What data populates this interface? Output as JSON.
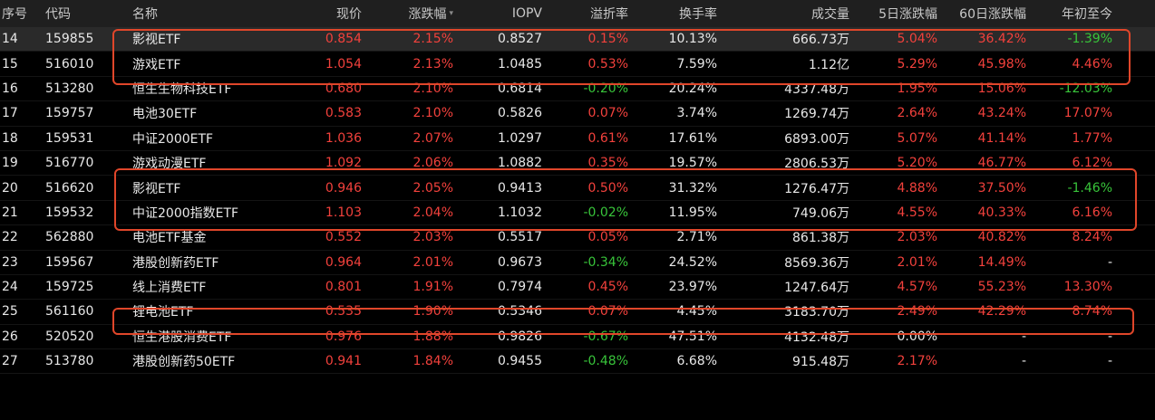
{
  "header": {
    "seq": "序号",
    "code": "代码",
    "name": "名称",
    "price": "现价",
    "change": "涨跌幅",
    "iopv": "IOPV",
    "premium": "溢折率",
    "turnover": "换手率",
    "volume": "成交量",
    "d5": "5日涨跌幅",
    "d60": "60日涨跌幅",
    "ytd": "年初至今",
    "sort_icon": "triangle-down-icon",
    "sort_glyph": "▾"
  },
  "rows": [
    {
      "seq": "14",
      "code": "159855",
      "name": "影视ETF",
      "price": "0.854",
      "change": "2.15%",
      "iopv": "0.8527",
      "premium": "0.15%",
      "turnover": "10.13%",
      "volume": "666.73万",
      "d5": "5.04%",
      "d60": "36.42%",
      "ytd": "-1.39%"
    },
    {
      "seq": "15",
      "code": "516010",
      "name": "游戏ETF",
      "price": "1.054",
      "change": "2.13%",
      "iopv": "1.0485",
      "premium": "0.53%",
      "turnover": "7.59%",
      "volume": "1.12亿",
      "d5": "5.29%",
      "d60": "45.98%",
      "ytd": "4.46%"
    },
    {
      "seq": "16",
      "code": "513280",
      "name": "恒生生物科技ETF",
      "price": "0.680",
      "change": "2.10%",
      "iopv": "0.6814",
      "premium": "-0.20%",
      "turnover": "20.24%",
      "volume": "4337.48万",
      "d5": "1.95%",
      "d60": "15.06%",
      "ytd": "-12.03%"
    },
    {
      "seq": "17",
      "code": "159757",
      "name": "电池30ETF",
      "price": "0.583",
      "change": "2.10%",
      "iopv": "0.5826",
      "premium": "0.07%",
      "turnover": "3.74%",
      "volume": "1269.74万",
      "d5": "2.64%",
      "d60": "43.24%",
      "ytd": "17.07%"
    },
    {
      "seq": "18",
      "code": "159531",
      "name": "中证2000ETF",
      "price": "1.036",
      "change": "2.07%",
      "iopv": "1.0297",
      "premium": "0.61%",
      "turnover": "17.61%",
      "volume": "6893.00万",
      "d5": "5.07%",
      "d60": "41.14%",
      "ytd": "1.77%"
    },
    {
      "seq": "19",
      "code": "516770",
      "name": "游戏动漫ETF",
      "price": "1.092",
      "change": "2.06%",
      "iopv": "1.0882",
      "premium": "0.35%",
      "turnover": "19.57%",
      "volume": "2806.53万",
      "d5": "5.20%",
      "d60": "46.77%",
      "ytd": "6.12%"
    },
    {
      "seq": "20",
      "code": "516620",
      "name": "影视ETF",
      "price": "0.946",
      "change": "2.05%",
      "iopv": "0.9413",
      "premium": "0.50%",
      "turnover": "31.32%",
      "volume": "1276.47万",
      "d5": "4.88%",
      "d60": "37.50%",
      "ytd": "-1.46%"
    },
    {
      "seq": "21",
      "code": "159532",
      "name": "中证2000指数ETF",
      "price": "1.103",
      "change": "2.04%",
      "iopv": "1.1032",
      "premium": "-0.02%",
      "turnover": "11.95%",
      "volume": "749.06万",
      "d5": "4.55%",
      "d60": "40.33%",
      "ytd": "6.16%"
    },
    {
      "seq": "22",
      "code": "562880",
      "name": "电池ETF基金",
      "price": "0.552",
      "change": "2.03%",
      "iopv": "0.5517",
      "premium": "0.05%",
      "turnover": "2.71%",
      "volume": "861.38万",
      "d5": "2.03%",
      "d60": "40.82%",
      "ytd": "8.24%"
    },
    {
      "seq": "23",
      "code": "159567",
      "name": "港股创新药ETF",
      "price": "0.964",
      "change": "2.01%",
      "iopv": "0.9673",
      "premium": "-0.34%",
      "turnover": "24.52%",
      "volume": "8569.36万",
      "d5": "2.01%",
      "d60": "14.49%",
      "ytd": "-"
    },
    {
      "seq": "24",
      "code": "159725",
      "name": "线上消费ETF",
      "price": "0.801",
      "change": "1.91%",
      "iopv": "0.7974",
      "premium": "0.45%",
      "turnover": "23.97%",
      "volume": "1247.64万",
      "d5": "4.57%",
      "d60": "55.23%",
      "ytd": "13.30%"
    },
    {
      "seq": "25",
      "code": "561160",
      "name": "锂电池ETF",
      "price": "0.535",
      "change": "1.90%",
      "iopv": "0.5346",
      "premium": "0.07%",
      "turnover": "4.45%",
      "volume": "3183.70万",
      "d5": "2.49%",
      "d60": "42.29%",
      "ytd": "8.74%"
    },
    {
      "seq": "26",
      "code": "520520",
      "name": "恒生港股消费ETF",
      "price": "0.976",
      "change": "1.88%",
      "iopv": "0.9826",
      "premium": "-0.67%",
      "turnover": "47.51%",
      "volume": "4132.48万",
      "d5": "0.00%",
      "d60": "-",
      "ytd": "-"
    },
    {
      "seq": "27",
      "code": "513780",
      "name": "港股创新药50ETF",
      "price": "0.941",
      "change": "1.84%",
      "iopv": "0.9455",
      "premium": "-0.48%",
      "turnover": "6.68%",
      "volume": "915.48万",
      "d5": "2.17%",
      "d60": "-",
      "ytd": "-"
    }
  ],
  "colors": {
    "up": "#f2413c",
    "down": "#38c43a",
    "neutral": "#e8e8e8",
    "highlight": "#e0462a",
    "background": "#000000",
    "header_bg": "#1f1f1f",
    "selected_row_bg": "#2a2a2a"
  }
}
